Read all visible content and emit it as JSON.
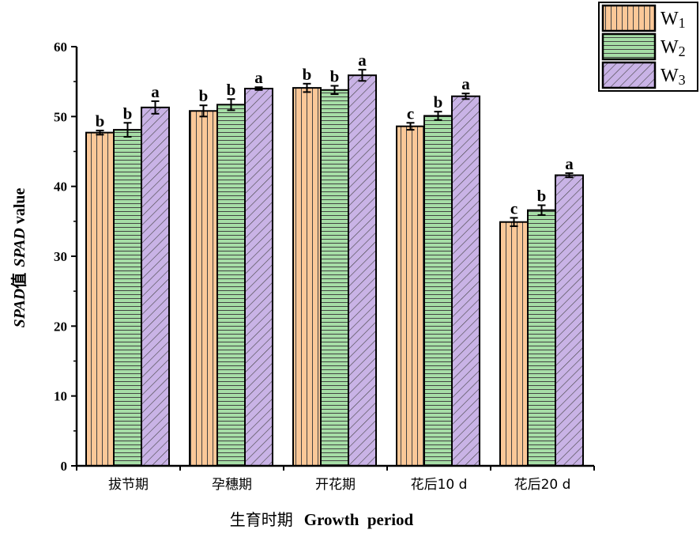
{
  "chart_data": {
    "type": "bar",
    "categories": [
      "拔节期",
      "孕穗期",
      "开花期",
      "花后10 d",
      "花后20 d"
    ],
    "series": [
      {
        "name": "W1",
        "legend_main": "W",
        "legend_sub": "1",
        "color": "#fbc898",
        "pattern": "vertical-lines",
        "values": [
          47.7,
          50.8,
          54.1,
          48.6,
          34.9
        ],
        "errors": [
          0.3,
          0.8,
          0.6,
          0.5,
          0.6
        ],
        "letters": [
          "b",
          "b",
          "b",
          "c",
          "c"
        ]
      },
      {
        "name": "W2",
        "legend_main": "W",
        "legend_sub": "2",
        "color": "#a6dea6",
        "pattern": "horizontal-lines",
        "values": [
          48.1,
          51.7,
          53.8,
          50.1,
          36.6
        ],
        "errors": [
          1.0,
          0.8,
          0.6,
          0.6,
          0.7
        ],
        "letters": [
          "b",
          "b",
          "b",
          "b",
          "b"
        ]
      },
      {
        "name": "W3",
        "legend_main": "W",
        "legend_sub": "3",
        "color": "#c9b3e6",
        "pattern": "diagonal-lines",
        "values": [
          51.3,
          54.0,
          55.9,
          52.9,
          41.6
        ],
        "errors": [
          0.9,
          0.2,
          0.8,
          0.4,
          0.3
        ],
        "letters": [
          "a",
          "a",
          "a",
          "a",
          "a"
        ]
      }
    ],
    "ylim": [
      0,
      60
    ],
    "yticks": [
      "0",
      "10",
      "20",
      "30",
      "40",
      "50",
      "60"
    ],
    "ylabel": "SPAD值  SPAD  value",
    "xlabel_cn": "生育时期",
    "xlabel_en": "Growth  period",
    "legend_position": "top-right",
    "grid": false
  }
}
